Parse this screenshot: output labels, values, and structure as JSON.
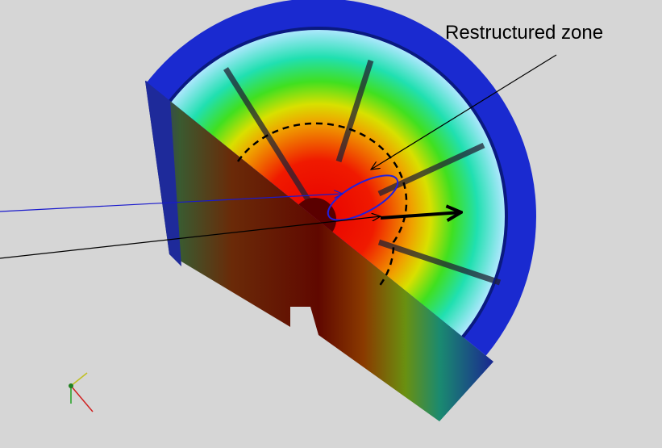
{
  "annotation": {
    "label": "Restructured zone"
  }
}
